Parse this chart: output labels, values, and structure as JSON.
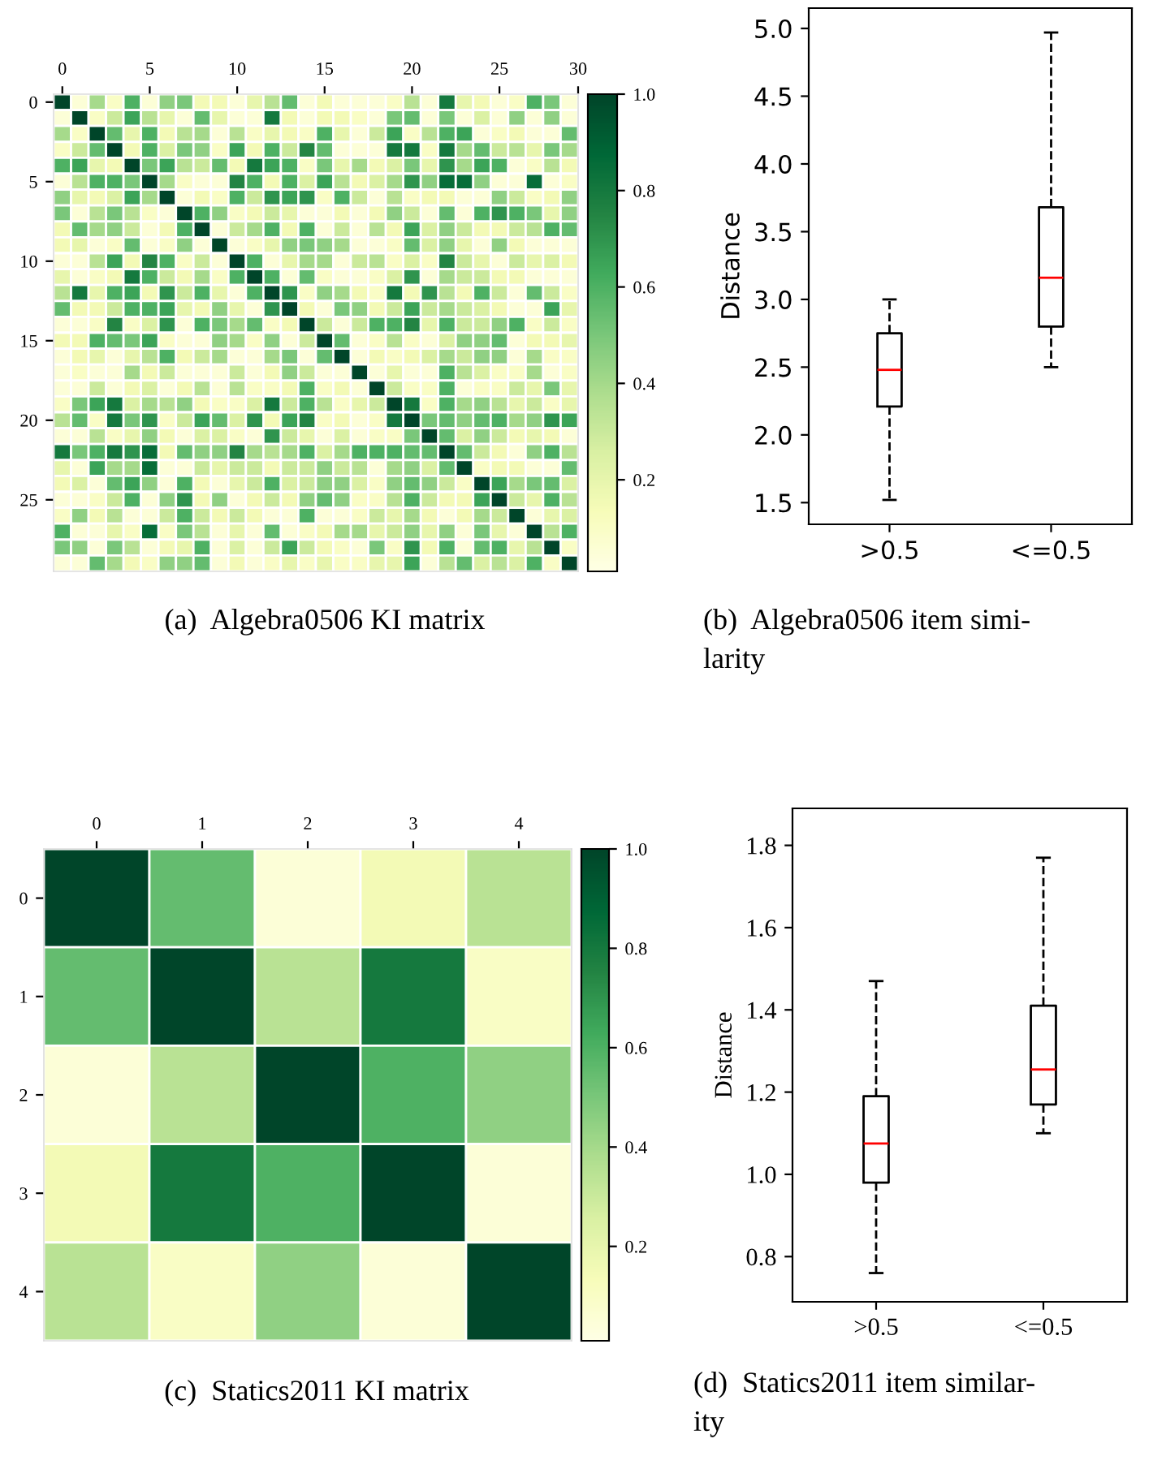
{
  "chart_data": [
    {
      "type": "heatmap",
      "title": "(a)  Algebra0506 KI matrix",
      "clim": [
        0.01,
        1.0
      ],
      "cticks": [
        0.2,
        0.4,
        0.6,
        0.8,
        {
          "value": 1.0,
          "label": "1.0"
        }
      ],
      "xlim": [
        -0.5,
        29.5
      ],
      "xticks": [
        0,
        5,
        10,
        15,
        20,
        25,
        {
          "value": 29.5,
          "label": "30"
        }
      ],
      "ylim": [
        29.5,
        -0.5
      ],
      "yticks": [
        0,
        5,
        10,
        15,
        20,
        25
      ],
      "cells": [
        [
          1,
          0.05,
          0.4,
          0.1,
          0.6,
          0.05,
          0.45,
          0.5,
          0.15,
          0.15,
          0.05,
          0.2,
          0.35,
          0.55,
          0.05,
          0.15,
          0.05,
          0.05,
          0.05,
          0.1,
          0.35,
          0.05,
          0.8,
          0.2,
          0.15,
          0.05,
          0.1,
          0.6,
          0.5,
          0.05
        ],
        [
          0.05,
          1,
          0.1,
          0.3,
          0.65,
          0.35,
          0.2,
          0.05,
          0.55,
          0.2,
          0.05,
          0.05,
          0.8,
          0.15,
          0.05,
          0.15,
          0.15,
          0.1,
          0.05,
          0.5,
          0.55,
          0.05,
          0.5,
          0.05,
          0.25,
          0.05,
          0.45,
          0.05,
          0.45,
          0.05
        ],
        [
          0.4,
          0.1,
          1,
          0.55,
          0.2,
          0.6,
          0.15,
          0.35,
          0.4,
          0.05,
          0.35,
          0.1,
          0.2,
          0.15,
          0.1,
          0.6,
          0.2,
          0.05,
          0.3,
          0.65,
          0.1,
          0.35,
          0.6,
          0.65,
          0.05,
          0.1,
          0.15,
          0.05,
          0.05,
          0.55
        ],
        [
          0.1,
          0.3,
          0.55,
          1,
          0.15,
          0.6,
          0.25,
          0.5,
          0.45,
          0.1,
          0.65,
          0.15,
          0.6,
          0.3,
          0.75,
          0.55,
          0.05,
          0.05,
          0.05,
          0.8,
          0.8,
          0.1,
          0.8,
          0.4,
          0.55,
          0.3,
          0.35,
          0.2,
          0.5,
          0.4
        ],
        [
          0.6,
          0.65,
          0.2,
          0.15,
          1,
          0.5,
          0.65,
          0.35,
          0.3,
          0.55,
          0.15,
          0.8,
          0.65,
          0.6,
          0.1,
          0.5,
          0.2,
          0.4,
          0.15,
          0.25,
          0.5,
          0.2,
          0.7,
          0.4,
          0.65,
          0.6,
          0.05,
          0.1,
          0.35,
          0.15
        ],
        [
          0.05,
          0.35,
          0.6,
          0.6,
          0.5,
          1,
          0.4,
          0.1,
          0.05,
          0.05,
          0.75,
          0.6,
          0.15,
          0.6,
          0.25,
          0.65,
          0.35,
          0.15,
          0.25,
          0.4,
          0.7,
          0.45,
          0.85,
          0.85,
          0.45,
          0.05,
          0.05,
          0.85,
          0.05,
          0.1
        ],
        [
          0.45,
          0.2,
          0.15,
          0.25,
          0.65,
          0.4,
          1,
          0.05,
          0.15,
          0.1,
          0.6,
          0.3,
          0.7,
          0.65,
          0.7,
          0.1,
          0.6,
          0.3,
          0.05,
          0.35,
          0.1,
          0.15,
          0.15,
          0.05,
          0.05,
          0.45,
          0.3,
          0.1,
          0.15,
          0.45
        ],
        [
          0.5,
          0.05,
          0.35,
          0.5,
          0.35,
          0.1,
          0.05,
          1,
          0.6,
          0.45,
          0.1,
          0.15,
          0.3,
          0.2,
          0.05,
          0.05,
          0.15,
          0.05,
          0.15,
          0.45,
          0.3,
          0.05,
          0.55,
          0.05,
          0.6,
          0.7,
          0.6,
          0.5,
          0.2,
          0.45
        ],
        [
          0.15,
          0.55,
          0.4,
          0.45,
          0.3,
          0.05,
          0.15,
          0.6,
          1,
          0.05,
          0.3,
          0.4,
          0.6,
          0.15,
          0.6,
          0.05,
          0.3,
          0.05,
          0.35,
          0.15,
          0.65,
          0.25,
          0.45,
          0.3,
          0.15,
          0.15,
          0.3,
          0.35,
          0.6,
          0.55
        ],
        [
          0.15,
          0.2,
          0.05,
          0.1,
          0.55,
          0.05,
          0.1,
          0.45,
          0.05,
          1,
          0.05,
          0.1,
          0.2,
          0.45,
          0.5,
          0.45,
          0.4,
          0.05,
          0.05,
          0.1,
          0.55,
          0.25,
          0.45,
          0.2,
          0.05,
          0.45,
          0.15,
          0.05,
          0.05,
          0.05
        ],
        [
          0.05,
          0.05,
          0.35,
          0.65,
          0.15,
          0.75,
          0.6,
          0.1,
          0.3,
          0.05,
          1,
          0.6,
          0.05,
          0.2,
          0.4,
          0.4,
          0.05,
          0.3,
          0.35,
          0.1,
          0.25,
          0.1,
          0.75,
          0.3,
          0.2,
          0.05,
          0.3,
          0.2,
          0.25,
          0.15
        ],
        [
          0.2,
          0.05,
          0.1,
          0.15,
          0.8,
          0.6,
          0.3,
          0.15,
          0.4,
          0.1,
          0.6,
          1,
          0.6,
          0.05,
          0.55,
          0.1,
          0.05,
          0.05,
          0.1,
          0.25,
          0.7,
          0.05,
          0.4,
          0.3,
          0.3,
          0.15,
          0.15,
          0.05,
          0.05,
          0.05
        ],
        [
          0.35,
          0.8,
          0.2,
          0.6,
          0.65,
          0.15,
          0.7,
          0.3,
          0.6,
          0.2,
          0.05,
          0.6,
          1,
          0.7,
          0.1,
          0.45,
          0.4,
          0.15,
          0.1,
          0.8,
          0.15,
          0.7,
          0.35,
          0.15,
          0.6,
          0.3,
          0.05,
          0.55,
          0.3,
          0.1
        ],
        [
          0.55,
          0.15,
          0.15,
          0.3,
          0.6,
          0.6,
          0.65,
          0.2,
          0.15,
          0.45,
          0.2,
          0.05,
          0.7,
          1,
          0.15,
          0.05,
          0.5,
          0.45,
          0.15,
          0.3,
          0.65,
          0.3,
          0.4,
          0.3,
          0.25,
          0.15,
          0.05,
          0.05,
          0.65,
          0.2
        ],
        [
          0.05,
          0.05,
          0.1,
          0.75,
          0.1,
          0.25,
          0.7,
          0.05,
          0.6,
          0.5,
          0.4,
          0.55,
          0.1,
          0.15,
          1,
          0.3,
          0.05,
          0.3,
          0.6,
          0.6,
          0.75,
          0.2,
          0.6,
          0.3,
          0.3,
          0.45,
          0.6,
          0.1,
          0.3,
          0.1
        ],
        [
          0.15,
          0.15,
          0.6,
          0.55,
          0.5,
          0.65,
          0.1,
          0.05,
          0.05,
          0.45,
          0.4,
          0.1,
          0.45,
          0.05,
          0.3,
          1,
          0.55,
          0.05,
          0.1,
          0.35,
          0.1,
          0.05,
          0.25,
          0.45,
          0.45,
          0.55,
          0.05,
          0.15,
          0.15,
          0.2
        ],
        [
          0.05,
          0.15,
          0.2,
          0.05,
          0.2,
          0.35,
          0.6,
          0.15,
          0.3,
          0.4,
          0.05,
          0.05,
          0.4,
          0.5,
          0.05,
          0.55,
          1,
          0.05,
          0.15,
          0.1,
          0.15,
          0.25,
          0.4,
          0.3,
          0.45,
          0.45,
          0.05,
          0.4,
          0.1,
          0.1
        ],
        [
          0.05,
          0.1,
          0.05,
          0.05,
          0.4,
          0.15,
          0.3,
          0.05,
          0.05,
          0.05,
          0.3,
          0.05,
          0.15,
          0.45,
          0.3,
          0.05,
          0.05,
          1,
          0.05,
          0.2,
          0.05,
          0.05,
          0.6,
          0.35,
          0.25,
          0.1,
          0.1,
          0.4,
          0.05,
          0.1
        ],
        [
          0.05,
          0.05,
          0.3,
          0.05,
          0.15,
          0.25,
          0.05,
          0.15,
          0.35,
          0.05,
          0.35,
          0.1,
          0.1,
          0.15,
          0.6,
          0.1,
          0.15,
          0.05,
          1,
          0.3,
          0.1,
          0.1,
          0.6,
          0.05,
          0.1,
          0.1,
          0.3,
          0.2,
          0.5,
          0.2
        ],
        [
          0.1,
          0.5,
          0.65,
          0.8,
          0.25,
          0.4,
          0.35,
          0.45,
          0.15,
          0.1,
          0.1,
          0.25,
          0.8,
          0.3,
          0.6,
          0.35,
          0.1,
          0.2,
          0.3,
          1,
          0.8,
          0.1,
          0.6,
          0.4,
          0.45,
          0.35,
          0.2,
          0.3,
          0.1,
          0.2
        ],
        [
          0.35,
          0.55,
          0.1,
          0.8,
          0.5,
          0.7,
          0.1,
          0.3,
          0.65,
          0.55,
          0.25,
          0.7,
          0.15,
          0.65,
          0.75,
          0.1,
          0.15,
          0.05,
          0.1,
          0.8,
          1,
          0.5,
          0.55,
          0.45,
          0.55,
          0.6,
          0.4,
          0.45,
          0.7,
          0.65
        ],
        [
          0.05,
          0.05,
          0.35,
          0.1,
          0.2,
          0.45,
          0.15,
          0.05,
          0.25,
          0.25,
          0.1,
          0.05,
          0.7,
          0.3,
          0.2,
          0.05,
          0.25,
          0.05,
          0.1,
          0.1,
          0.5,
          1,
          0.55,
          0.25,
          0.45,
          0.3,
          0.15,
          0.2,
          0.15,
          0.05
        ],
        [
          0.8,
          0.5,
          0.6,
          0.8,
          0.7,
          0.85,
          0.15,
          0.55,
          0.45,
          0.45,
          0.75,
          0.4,
          0.35,
          0.4,
          0.6,
          0.25,
          0.4,
          0.6,
          0.6,
          0.6,
          0.55,
          0.55,
          1,
          0.55,
          0.3,
          0.15,
          0.05,
          0.45,
          0.6,
          0.35
        ],
        [
          0.2,
          0.05,
          0.65,
          0.4,
          0.4,
          0.85,
          0.05,
          0.05,
          0.3,
          0.2,
          0.3,
          0.3,
          0.15,
          0.3,
          0.3,
          0.45,
          0.3,
          0.35,
          0.05,
          0.4,
          0.45,
          0.25,
          0.55,
          1,
          0.1,
          0.15,
          0.15,
          0.05,
          0.05,
          0.55
        ],
        [
          0.15,
          0.25,
          0.05,
          0.55,
          0.65,
          0.45,
          0.05,
          0.6,
          0.15,
          0.05,
          0.2,
          0.3,
          0.6,
          0.25,
          0.3,
          0.45,
          0.45,
          0.25,
          0.1,
          0.45,
          0.55,
          0.45,
          0.3,
          0.1,
          1,
          0.65,
          0.4,
          0.5,
          0.55,
          0.25
        ],
        [
          0.05,
          0.05,
          0.1,
          0.3,
          0.6,
          0.05,
          0.45,
          0.7,
          0.15,
          0.45,
          0.05,
          0.15,
          0.3,
          0.15,
          0.45,
          0.55,
          0.45,
          0.1,
          0.1,
          0.35,
          0.6,
          0.3,
          0.15,
          0.15,
          0.65,
          1,
          0.3,
          0.2,
          0.6,
          0.35
        ],
        [
          0.1,
          0.45,
          0.15,
          0.35,
          0.05,
          0.05,
          0.3,
          0.6,
          0.3,
          0.15,
          0.3,
          0.15,
          0.05,
          0.05,
          0.6,
          0.05,
          0.05,
          0.1,
          0.3,
          0.2,
          0.4,
          0.15,
          0.05,
          0.15,
          0.4,
          0.3,
          1,
          0.05,
          0.2,
          0.25
        ],
        [
          0.6,
          0.05,
          0.05,
          0.2,
          0.1,
          0.85,
          0.1,
          0.5,
          0.35,
          0.05,
          0.2,
          0.05,
          0.55,
          0.05,
          0.1,
          0.15,
          0.4,
          0.4,
          0.2,
          0.3,
          0.45,
          0.2,
          0.45,
          0.05,
          0.5,
          0.2,
          0.05,
          1,
          0.35,
          0.6
        ],
        [
          0.5,
          0.45,
          0.05,
          0.5,
          0.35,
          0.05,
          0.15,
          0.2,
          0.6,
          0.05,
          0.25,
          0.05,
          0.3,
          0.65,
          0.3,
          0.15,
          0.1,
          0.05,
          0.5,
          0.1,
          0.7,
          0.15,
          0.6,
          0.05,
          0.55,
          0.6,
          0.2,
          0.35,
          1,
          0.1
        ],
        [
          0.05,
          0.05,
          0.55,
          0.4,
          0.15,
          0.1,
          0.45,
          0.45,
          0.55,
          0.05,
          0.15,
          0.05,
          0.1,
          0.2,
          0.1,
          0.2,
          0.1,
          0.1,
          0.2,
          0.2,
          0.65,
          0.05,
          0.35,
          0.55,
          0.25,
          0.35,
          0.25,
          0.6,
          0.1,
          1
        ]
      ]
    },
    {
      "type": "box",
      "title": "(b)  Algebra0506 item simi-\nlarity",
      "ylabel": "Distance",
      "categories": [
        ">0.5",
        "<=0.5"
      ],
      "ylim": [
        1.34,
        5.15
      ],
      "yticks": [
        1.5,
        {
          "value": 2,
          "label": "2.0"
        },
        2.5,
        {
          "value": 3,
          "label": "3.0"
        },
        3.5,
        {
          "value": 4,
          "label": "4.0"
        },
        4.5,
        {
          "value": 5,
          "label": "5.0"
        }
      ],
      "boxes": [
        {
          "low": 1.52,
          "q1": 2.21,
          "median": 2.48,
          "q3": 2.75,
          "high": 3.0
        },
        {
          "low": 2.5,
          "q1": 2.8,
          "median": 3.16,
          "q3": 3.68,
          "high": 4.97
        }
      ]
    },
    {
      "type": "heatmap",
      "title": "(c)  Statics2011 KI matrix",
      "clim": [
        0.01,
        1.0
      ],
      "cticks": [
        0.2,
        0.4,
        0.6,
        0.8,
        {
          "value": 1.0,
          "label": "1.0"
        }
      ],
      "xlim": [
        -0.5,
        4.5
      ],
      "xticks": [
        0,
        1,
        2,
        3,
        4
      ],
      "ylim": [
        4.5,
        -0.5
      ],
      "yticks": [
        0,
        1,
        2,
        3,
        4
      ],
      "cells": [
        [
          1,
          0.55,
          0.05,
          0.15,
          0.35
        ],
        [
          0.55,
          1,
          0.35,
          0.8,
          0.1
        ],
        [
          0.05,
          0.35,
          1,
          0.6,
          0.45
        ],
        [
          0.15,
          0.8,
          0.6,
          1,
          0.05
        ],
        [
          0.35,
          0.1,
          0.45,
          0.05,
          1
        ]
      ]
    },
    {
      "type": "box",
      "title": "(d)  Statics2011 item similar-\nity",
      "ylabel": "Distance",
      "categories": [
        ">0.5",
        "<=0.5"
      ],
      "ylim": [
        0.69,
        1.89
      ],
      "yticks": [
        0.8,
        {
          "value": 1,
          "label": "1.0"
        },
        1.2,
        1.4,
        1.6,
        1.8
      ],
      "boxes": [
        {
          "low": 0.76,
          "q1": 0.98,
          "median": 1.075,
          "q3": 1.19,
          "high": 1.47
        },
        {
          "low": 1.1,
          "q1": 1.17,
          "median": 1.255,
          "q3": 1.41,
          "high": 1.77
        }
      ]
    }
  ]
}
